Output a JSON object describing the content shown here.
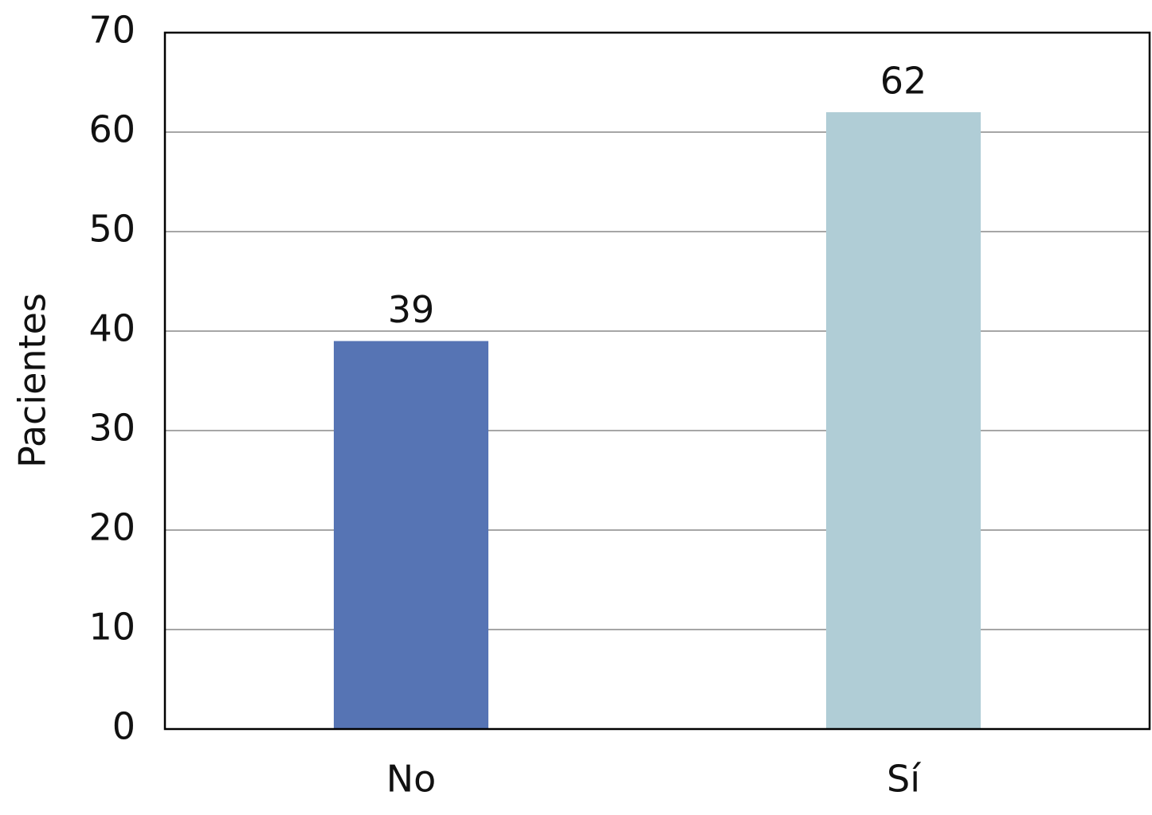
{
  "chart_data": {
    "type": "bar",
    "y_label": "Pacientes",
    "categories": [
      "No",
      "Sí"
    ],
    "values": [
      39,
      62
    ],
    "colors": [
      "#5674b4",
      "#b0cdd6"
    ],
    "ylim": [
      0,
      70
    ],
    "yticks": [
      0,
      10,
      20,
      30,
      40,
      50,
      60,
      70
    ],
    "grid": true
  }
}
